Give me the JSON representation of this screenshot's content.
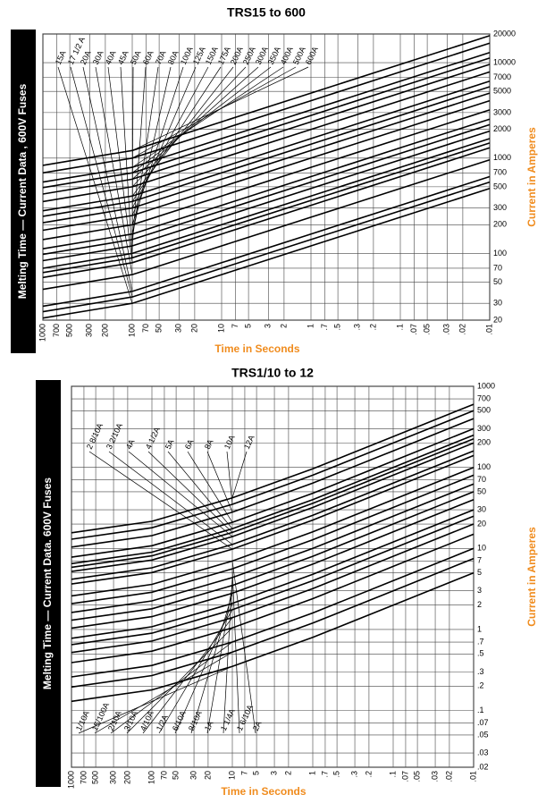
{
  "chart_data": [
    {
      "type": "line",
      "title": "TRS15 to 600",
      "side_label": "Melting Time — Current Data , 600V Fuses",
      "x_label": "Time in Seconds",
      "y_label": "Current in Amperes",
      "label_color": "#f08c1e",
      "color": "#000000",
      "log_x": true,
      "log_y": true,
      "grid": true,
      "xlim": [
        1000,
        0.01
      ],
      "ylim": [
        20,
        20000
      ],
      "xticks": [
        1000,
        700,
        500,
        300,
        200,
        100,
        70,
        50,
        30,
        20,
        10,
        7,
        5,
        3,
        2,
        1,
        {
          "value": 0.7,
          "label": ".7"
        },
        {
          "value": 0.5,
          "label": ".5"
        },
        {
          "value": 0.3,
          "label": ".3"
        },
        {
          "value": 0.2,
          "label": ".2"
        },
        {
          "value": 0.1,
          "label": ".1"
        },
        {
          "value": 0.07,
          "label": ".07"
        },
        {
          "value": 0.05,
          "label": ".05"
        },
        {
          "value": 0.03,
          "label": ".03"
        },
        {
          "value": 0.02,
          "label": ".02"
        },
        {
          "value": 0.01,
          "label": ".01"
        }
      ],
      "yticks": [
        20,
        30,
        50,
        70,
        100,
        200,
        300,
        500,
        700,
        1000,
        2000,
        3000,
        5000,
        7000,
        10000,
        20000
      ],
      "x": [
        1000,
        100,
        10,
        1,
        0.1,
        0.01
      ],
      "series": [
        {
          "name": "15A",
          "values": [
            21,
            30,
            60,
            120,
            240,
            480
          ]
        },
        {
          "name": "17 1/2 A",
          "values": [
            24.5,
            35,
            70,
            140,
            280,
            560
          ]
        },
        {
          "name": "20A",
          "values": [
            28,
            40,
            80,
            160,
            320,
            640
          ]
        },
        {
          "name": "30A",
          "values": [
            42,
            60,
            120,
            240,
            480,
            960
          ]
        },
        {
          "name": "40A",
          "values": [
            56,
            80,
            160,
            320,
            640,
            1280
          ]
        },
        {
          "name": "45A",
          "values": [
            63,
            90,
            180,
            360,
            720,
            1440
          ]
        },
        {
          "name": "50A",
          "values": [
            70,
            100,
            200,
            400,
            800,
            1600
          ]
        },
        {
          "name": "60A",
          "values": [
            84,
            120,
            240,
            480,
            960,
            1920
          ]
        },
        {
          "name": "70A",
          "values": [
            98,
            140,
            280,
            560,
            1120,
            2240
          ]
        },
        {
          "name": "80A",
          "values": [
            112,
            160,
            320,
            640,
            1280,
            2560
          ]
        },
        {
          "name": "100A",
          "values": [
            140,
            200,
            400,
            800,
            1600,
            3200
          ]
        },
        {
          "name": "125A",
          "values": [
            175,
            250,
            500,
            1000,
            2000,
            4000
          ]
        },
        {
          "name": "150A",
          "values": [
            210,
            300,
            600,
            1200,
            2400,
            4800
          ]
        },
        {
          "name": "175A",
          "values": [
            245,
            350,
            700,
            1400,
            2800,
            5600
          ]
        },
        {
          "name": "200A",
          "values": [
            280,
            400,
            800,
            1600,
            3200,
            6400
          ]
        },
        {
          "name": "250A",
          "values": [
            350,
            500,
            1000,
            2000,
            4000,
            8000
          ]
        },
        {
          "name": "300A",
          "values": [
            420,
            600,
            1200,
            2400,
            4800,
            9600
          ]
        },
        {
          "name": "350A",
          "values": [
            490,
            700,
            1400,
            2800,
            5600,
            11200
          ]
        },
        {
          "name": "400A",
          "values": [
            560,
            800,
            1600,
            3200,
            6400,
            12800
          ]
        },
        {
          "name": "500A",
          "values": [
            700,
            1000,
            2000,
            4000,
            8000,
            16000
          ]
        },
        {
          "name": "600A",
          "values": [
            840,
            1200,
            2400,
            4800,
            9600,
            19200
          ]
        }
      ]
    },
    {
      "type": "line",
      "title": "TRS1/10 to 12",
      "side_label": "Melting Time — Current Data. 600V Fuses",
      "x_label": "Time in Seconds",
      "y_label": "Current in Amperes",
      "label_color": "#f08c1e",
      "color": "#000000",
      "log_x": true,
      "log_y": true,
      "grid": true,
      "xlim": [
        1000,
        0.01
      ],
      "ylim": [
        0.02,
        1000
      ],
      "xticks": [
        1000,
        700,
        500,
        300,
        200,
        100,
        70,
        50,
        30,
        20,
        10,
        7,
        5,
        3,
        2,
        1,
        {
          "value": 0.7,
          "label": ".7"
        },
        {
          "value": 0.5,
          "label": ".5"
        },
        {
          "value": 0.3,
          "label": ".3"
        },
        {
          "value": 0.2,
          "label": ".2"
        },
        {
          "value": 0.1,
          "label": ".1"
        },
        {
          "value": 0.07,
          "label": ".07"
        },
        {
          "value": 0.05,
          "label": ".05"
        },
        {
          "value": 0.03,
          "label": ".03"
        },
        {
          "value": 0.02,
          "label": ".02"
        },
        {
          "value": 0.01,
          "label": ".01"
        }
      ],
      "yticks": [
        {
          "value": 0.02,
          "label": ".02"
        },
        {
          "value": 0.03,
          "label": ".03"
        },
        {
          "value": 0.05,
          "label": ".05"
        },
        {
          "value": 0.07,
          "label": ".07"
        },
        {
          "value": 0.1,
          "label": ".1"
        },
        {
          "value": 0.2,
          "label": ".2"
        },
        {
          "value": 0.3,
          "label": ".3"
        },
        {
          "value": 0.5,
          "label": ".5"
        },
        {
          "value": 0.7,
          "label": ".7"
        },
        1,
        2,
        3,
        5,
        7,
        10,
        20,
        30,
        50,
        70,
        100,
        200,
        300,
        500,
        700,
        1000
      ],
      "x": [
        1000,
        100,
        10,
        1,
        0.1,
        0.01
      ],
      "series": [
        {
          "name": "1/10A",
          "values": [
            0.13,
            0.18,
            0.35,
            0.8,
            2,
            5
          ]
        },
        {
          "name": "15/100A",
          "values": [
            0.195,
            0.27,
            0.525,
            1.2,
            3,
            7.5
          ]
        },
        {
          "name": "2/10A",
          "values": [
            0.26,
            0.36,
            0.7,
            1.6,
            4,
            10
          ]
        },
        {
          "name": "3/10A",
          "values": [
            0.39,
            0.54,
            1.05,
            2.4,
            6,
            15
          ]
        },
        {
          "name": "4/10A",
          "values": [
            0.52,
            0.72,
            1.4,
            3.2,
            8,
            20
          ]
        },
        {
          "name": "1/2A",
          "values": [
            0.65,
            0.9,
            1.75,
            4,
            10,
            25
          ]
        },
        {
          "name": "6/10A",
          "values": [
            0.78,
            1.08,
            2.1,
            4.8,
            12,
            30
          ]
        },
        {
          "name": "8/10A",
          "values": [
            1.04,
            1.44,
            2.8,
            6.4,
            16,
            40
          ]
        },
        {
          "name": "1A",
          "values": [
            1.3,
            1.8,
            3.5,
            8,
            20,
            50
          ]
        },
        {
          "name": "1 1/4A",
          "values": [
            1.625,
            2.25,
            4.375,
            10,
            25,
            62.5
          ]
        },
        {
          "name": "1 6/10A",
          "values": [
            2.08,
            2.88,
            5.6,
            12.8,
            32,
            80
          ]
        },
        {
          "name": "2A",
          "values": [
            2.6,
            3.6,
            7,
            16,
            40,
            100
          ]
        },
        {
          "name": "2 8/10A",
          "values": [
            3.64,
            5.04,
            9.8,
            22.4,
            56,
            140
          ]
        },
        {
          "name": "3 2/10A",
          "values": [
            4.16,
            5.76,
            11.2,
            25.6,
            64,
            160
          ]
        },
        {
          "name": "4A",
          "values": [
            5.2,
            7.2,
            14,
            32,
            80,
            200
          ]
        },
        {
          "name": "4 1/2A",
          "values": [
            5.85,
            8.1,
            15.75,
            36,
            90,
            225
          ]
        },
        {
          "name": "5A",
          "values": [
            6.5,
            9,
            17.5,
            40,
            100,
            250
          ]
        },
        {
          "name": "6A",
          "values": [
            7.8,
            10.8,
            21,
            48,
            120,
            300
          ]
        },
        {
          "name": "8A",
          "values": [
            10.4,
            14.4,
            28,
            64,
            160,
            400
          ]
        },
        {
          "name": "10A",
          "values": [
            13,
            18,
            35,
            80,
            200,
            500
          ]
        },
        {
          "name": "12A",
          "values": [
            15.6,
            21.6,
            42,
            96,
            240,
            600
          ]
        }
      ]
    }
  ]
}
